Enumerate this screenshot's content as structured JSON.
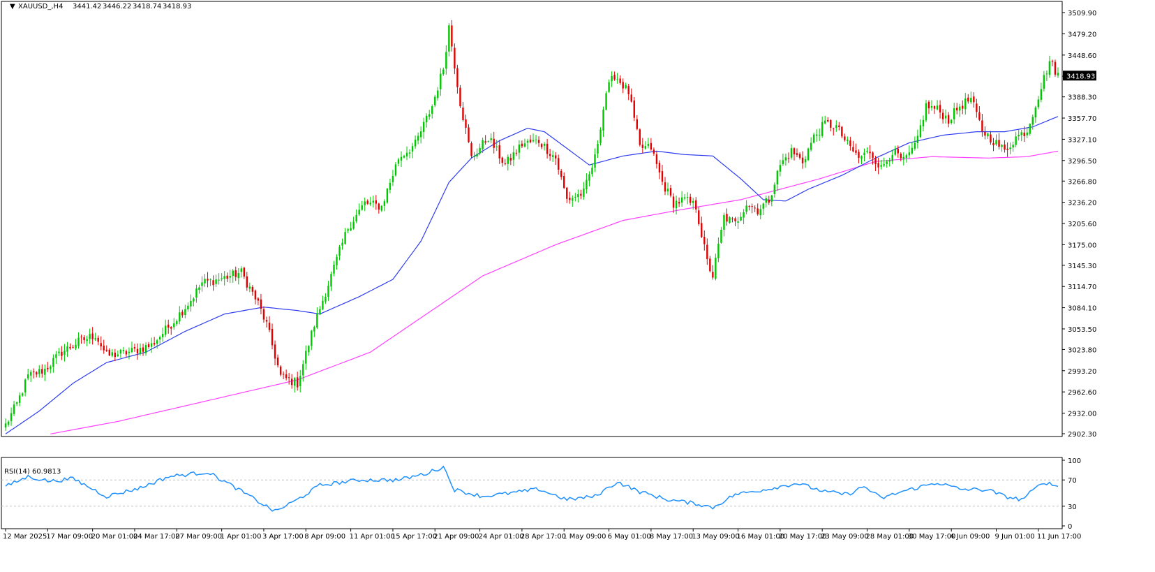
{
  "chart_data": {
    "type": "candlestick",
    "symbol_line": {
      "symbol": "XAUUSD_,H4",
      "open": "3441.42",
      "high": "3446.22",
      "low": "3418.74",
      "close": "3418.93"
    },
    "last_price_label": "3418.93",
    "price_axis": {
      "ylim": [
        2902.3,
        3509.9
      ],
      "ticks": [
        "3509.90",
        "3479.20",
        "3448.60",
        "3418.00",
        "3388.30",
        "3357.70",
        "3327.10",
        "3296.50",
        "3266.80",
        "3236.20",
        "3205.60",
        "3175.00",
        "3145.30",
        "3114.70",
        "3084.10",
        "3053.50",
        "3023.80",
        "2993.20",
        "2962.60",
        "2932.00",
        "2902.30"
      ]
    },
    "x_ticks": [
      "12 Mar 2025",
      "17 Mar 09:00",
      "20 Mar 01:00",
      "24 Mar 17:00",
      "27 Mar 09:00",
      "1 Apr 01:00",
      "3 Apr 17:00",
      "8 Apr 09:00",
      "11 Apr 01:00",
      "15 Apr 17:00",
      "21 Apr 09:00",
      "24 Apr 01:00",
      "28 Apr 17:00",
      "1 May 09:00",
      "6 May 01:00",
      "8 May 17:00",
      "13 May 09:00",
      "16 May 01:00",
      "20 May 17:00",
      "23 May 09:00",
      "28 May 01:00",
      "30 May 17:00",
      "4 Jun 09:00",
      "9 Jun 01:00",
      "11 Jun 17:00"
    ],
    "close_path_anchors": [
      [
        0,
        2915
      ],
      [
        4,
        2945
      ],
      [
        8,
        2985
      ],
      [
        14,
        2995
      ],
      [
        20,
        3020
      ],
      [
        26,
        3035
      ],
      [
        32,
        3045
      ],
      [
        36,
        3015
      ],
      [
        44,
        3020
      ],
      [
        52,
        3030
      ],
      [
        60,
        3065
      ],
      [
        66,
        3095
      ],
      [
        70,
        3120
      ],
      [
        76,
        3125
      ],
      [
        84,
        3135
      ],
      [
        90,
        3090
      ],
      [
        93,
        3060
      ],
      [
        98,
        2985
      ],
      [
        104,
        2975
      ],
      [
        110,
        3060
      ],
      [
        116,
        3130
      ],
      [
        122,
        3200
      ],
      [
        128,
        3235
      ],
      [
        134,
        3230
      ],
      [
        140,
        3300
      ],
      [
        146,
        3320
      ],
      [
        152,
        3375
      ],
      [
        156,
        3430
      ],
      [
        158,
        3490
      ],
      [
        162,
        3380
      ],
      [
        166,
        3300
      ],
      [
        172,
        3330
      ],
      [
        178,
        3290
      ],
      [
        184,
        3320
      ],
      [
        190,
        3325
      ],
      [
        196,
        3300
      ],
      [
        200,
        3240
      ],
      [
        206,
        3250
      ],
      [
        210,
        3300
      ],
      [
        214,
        3395
      ],
      [
        217,
        3420
      ],
      [
        222,
        3395
      ],
      [
        226,
        3315
      ],
      [
        230,
        3315
      ],
      [
        234,
        3265
      ],
      [
        238,
        3235
      ],
      [
        242,
        3240
      ],
      [
        246,
        3230
      ],
      [
        250,
        3150
      ],
      [
        252,
        3130
      ],
      [
        256,
        3215
      ],
      [
        260,
        3205
      ],
      [
        264,
        3235
      ],
      [
        268,
        3225
      ],
      [
        272,
        3240
      ],
      [
        276,
        3290
      ],
      [
        280,
        3310
      ],
      [
        284,
        3295
      ],
      [
        288,
        3330
      ],
      [
        292,
        3350
      ],
      [
        296,
        3345
      ],
      [
        300,
        3320
      ],
      [
        304,
        3300
      ],
      [
        308,
        3310
      ],
      [
        312,
        3285
      ],
      [
        316,
        3310
      ],
      [
        320,
        3295
      ],
      [
        324,
        3315
      ],
      [
        328,
        3375
      ],
      [
        332,
        3370
      ],
      [
        336,
        3355
      ],
      [
        340,
        3375
      ],
      [
        344,
        3385
      ],
      [
        348,
        3340
      ],
      [
        352,
        3325
      ],
      [
        356,
        3310
      ],
      [
        360,
        3330
      ],
      [
        364,
        3340
      ],
      [
        368,
        3390
      ],
      [
        372,
        3440
      ],
      [
        375,
        3420
      ]
    ],
    "ma_blue_anchors": [
      [
        0,
        2902
      ],
      [
        12,
        2935
      ],
      [
        24,
        2975
      ],
      [
        36,
        3005
      ],
      [
        50,
        3020
      ],
      [
        64,
        3050
      ],
      [
        78,
        3075
      ],
      [
        92,
        3085
      ],
      [
        104,
        3080
      ],
      [
        112,
        3075
      ],
      [
        126,
        3100
      ],
      [
        138,
        3125
      ],
      [
        148,
        3180
      ],
      [
        158,
        3265
      ],
      [
        166,
        3300
      ],
      [
        176,
        3325
      ],
      [
        186,
        3343
      ],
      [
        192,
        3338
      ],
      [
        198,
        3320
      ],
      [
        208,
        3290
      ],
      [
        220,
        3303
      ],
      [
        232,
        3310
      ],
      [
        242,
        3305
      ],
      [
        252,
        3303
      ],
      [
        262,
        3270
      ],
      [
        270,
        3240
      ],
      [
        278,
        3238
      ],
      [
        286,
        3255
      ],
      [
        298,
        3275
      ],
      [
        310,
        3300
      ],
      [
        322,
        3322
      ],
      [
        334,
        3333
      ],
      [
        346,
        3338
      ],
      [
        356,
        3338
      ],
      [
        366,
        3345
      ],
      [
        375,
        3360
      ]
    ],
    "ma_magenta_anchors": [
      [
        16,
        2902
      ],
      [
        40,
        2920
      ],
      [
        72,
        2950
      ],
      [
        104,
        2980
      ],
      [
        130,
        3020
      ],
      [
        150,
        3075
      ],
      [
        170,
        3130
      ],
      [
        196,
        3175
      ],
      [
        220,
        3210
      ],
      [
        240,
        3225
      ],
      [
        262,
        3240
      ],
      [
        276,
        3255
      ],
      [
        290,
        3270
      ],
      [
        310,
        3295
      ],
      [
        330,
        3302
      ],
      [
        350,
        3300
      ],
      [
        364,
        3302
      ],
      [
        375,
        3310
      ]
    ],
    "rsi": {
      "label": "RSI(14) 60.9813",
      "ylim": [
        0,
        100
      ],
      "ticks": [
        "100",
        "70",
        "30",
        "0"
      ],
      "anchors": [
        [
          0,
          60
        ],
        [
          8,
          75
        ],
        [
          16,
          68
        ],
        [
          24,
          72
        ],
        [
          36,
          45
        ],
        [
          48,
          58
        ],
        [
          58,
          75
        ],
        [
          72,
          82
        ],
        [
          82,
          58
        ],
        [
          96,
          22
        ],
        [
          104,
          40
        ],
        [
          112,
          62
        ],
        [
          126,
          70
        ],
        [
          140,
          70
        ],
        [
          150,
          80
        ],
        [
          156,
          90
        ],
        [
          160,
          55
        ],
        [
          170,
          45
        ],
        [
          180,
          50
        ],
        [
          190,
          56
        ],
        [
          200,
          40
        ],
        [
          210,
          45
        ],
        [
          218,
          67
        ],
        [
          226,
          52
        ],
        [
          236,
          40
        ],
        [
          246,
          34
        ],
        [
          252,
          28
        ],
        [
          260,
          48
        ],
        [
          270,
          55
        ],
        [
          282,
          65
        ],
        [
          292,
          52
        ],
        [
          300,
          48
        ],
        [
          306,
          60
        ],
        [
          312,
          42
        ],
        [
          320,
          53
        ],
        [
          332,
          66
        ],
        [
          340,
          56
        ],
        [
          350,
          55
        ],
        [
          356,
          45
        ],
        [
          362,
          40
        ],
        [
          370,
          67
        ],
        [
          375,
          60
        ]
      ]
    },
    "colors": {
      "bull": "#00c800",
      "bear": "#e00000",
      "ma_fast": "#2e3cf0",
      "ma_slow": "#ff40ff",
      "rsi": "#1e90ff",
      "grid_level": "#c0c0c0",
      "axis": "#000000"
    },
    "grid": false
  }
}
